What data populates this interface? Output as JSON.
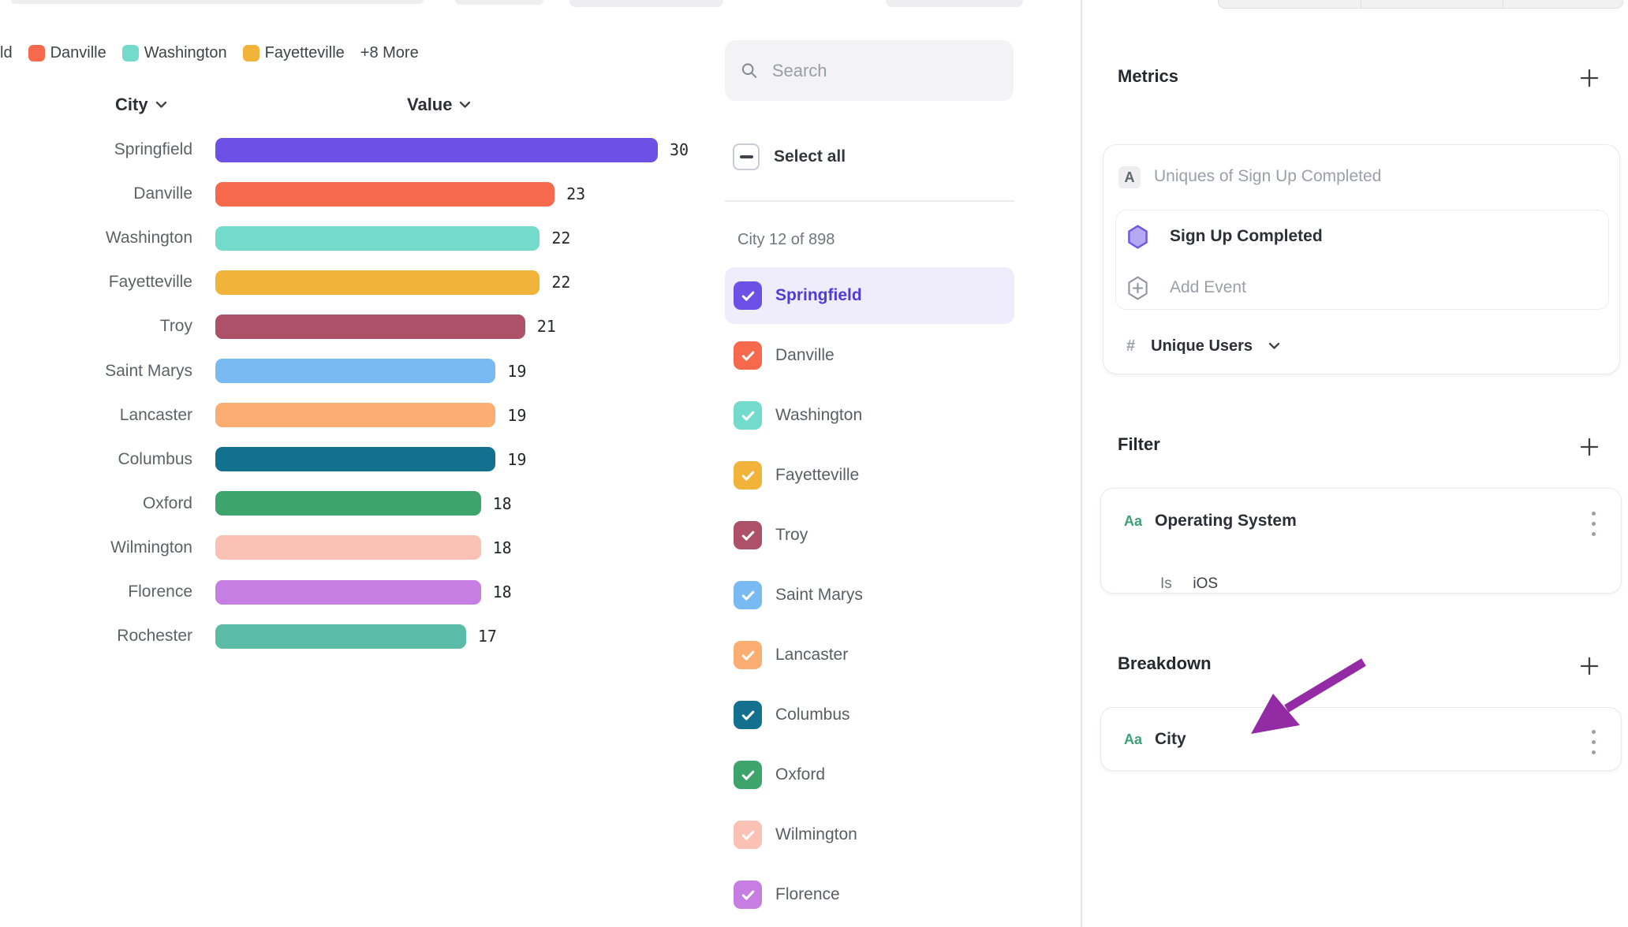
{
  "chart_data": {
    "type": "bar",
    "orientation": "horizontal",
    "columns": {
      "city": "City",
      "value": "Value"
    },
    "categories": [
      "Springfield",
      "Danville",
      "Washington",
      "Fayetteville",
      "Troy",
      "Saint Marys",
      "Lancaster",
      "Columbus",
      "Oxford",
      "Wilmington",
      "Florence",
      "Rochester"
    ],
    "values": [
      30,
      23,
      22,
      22,
      21,
      19,
      19,
      19,
      18,
      18,
      18,
      17
    ],
    "colors": [
      "#6D50E6",
      "#F7694C",
      "#72DBCB",
      "#F2B33B",
      "#AC5168",
      "#79BAF2",
      "#FBAD72",
      "#13708F",
      "#3DA46B",
      "#FBC1B5",
      "#C67EE2",
      "#5ABBA7"
    ],
    "xlim": [
      0,
      30
    ],
    "grid": false,
    "legend_position": "top-left",
    "legend": {
      "items": [
        {
          "label": "ld",
          "color": null
        },
        {
          "label": "Danville",
          "color": "#F7694C"
        },
        {
          "label": "Washington",
          "color": "#72DBCB"
        },
        {
          "label": "Fayetteville",
          "color": "#F2B33B"
        },
        {
          "label": "+8 More",
          "color": null
        }
      ]
    }
  },
  "city_panel": {
    "search": {
      "placeholder": "Search"
    },
    "select_all_label": "Select all",
    "count_label": "City 12 of 898",
    "items": [
      {
        "label": "Springfield",
        "color": "#6D50E6",
        "checked": true,
        "highlighted": true
      },
      {
        "label": "Danville",
        "color": "#F7694C",
        "checked": true,
        "highlighted": false
      },
      {
        "label": "Washington",
        "color": "#72DBCB",
        "checked": true,
        "highlighted": false
      },
      {
        "label": "Fayetteville",
        "color": "#F2B33B",
        "checked": true,
        "highlighted": false
      },
      {
        "label": "Troy",
        "color": "#AC5168",
        "checked": true,
        "highlighted": false
      },
      {
        "label": "Saint Marys",
        "color": "#79BAF2",
        "checked": true,
        "highlighted": false
      },
      {
        "label": "Lancaster",
        "color": "#FBAD72",
        "checked": true,
        "highlighted": false
      },
      {
        "label": "Columbus",
        "color": "#13708F",
        "checked": true,
        "highlighted": false
      },
      {
        "label": "Oxford",
        "color": "#3DA46B",
        "checked": true,
        "highlighted": false
      },
      {
        "label": "Wilmington",
        "color": "#FBC1B5",
        "checked": true,
        "highlighted": false
      },
      {
        "label": "Florence",
        "color": "#C67EE2",
        "checked": true,
        "highlighted": false
      }
    ]
  },
  "right_panel": {
    "metrics": {
      "heading": "Metrics",
      "badge": "A",
      "summary": "Uniques of Sign Up Completed",
      "event_name": "Sign Up Completed",
      "add_event_label": "Add Event",
      "measure_prefix": "#",
      "measure_label": "Unique Users"
    },
    "filter": {
      "heading": "Filter",
      "property_badge": "Aa",
      "property_name": "Operating System",
      "operator": "Is",
      "value": "iOS"
    },
    "breakdown": {
      "heading": "Breakdown",
      "property_badge": "Aa",
      "property_name": "City"
    }
  },
  "colors": {
    "accent_purple": "#6D50E6",
    "highlight_row": "#EFECFC",
    "selected_text": "#4E3CD9",
    "annotation_arrow": "#932BA4",
    "badge_green": "#3EA077"
  }
}
